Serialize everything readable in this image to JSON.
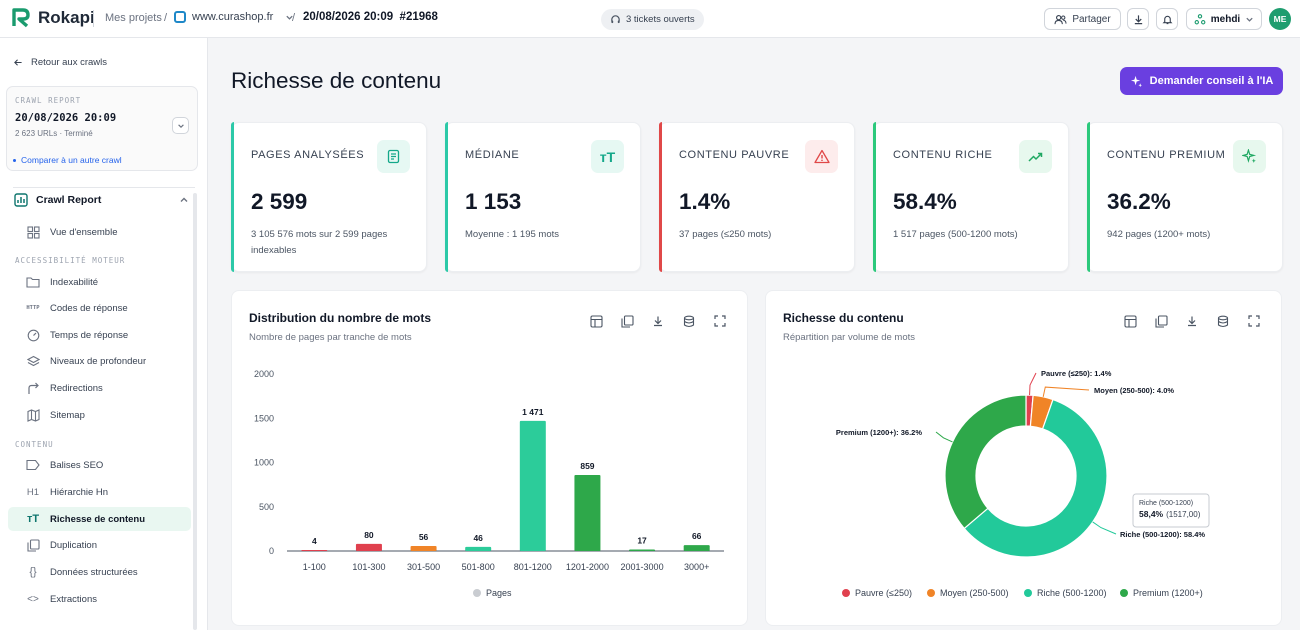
{
  "topbar": {
    "logo": "Rokapi",
    "breadcrumb_projects": "Mes projets",
    "site": "www.curashop.fr",
    "crawl_id": "20/08/2026 20:09  #21968",
    "tickets": "3 tickets ouverts",
    "share_label": "Partager",
    "user": "mehdi",
    "avatar_initials": "ME"
  },
  "sidebar": {
    "back": "Retour aux crawls",
    "crawl_box": {
      "label": "CRAWL REPORT",
      "date": "20/08/2026 20:09",
      "sub": "2 623 URLs · Terminé",
      "compare": "Comparer à un autre crawl"
    },
    "section": "Crawl Report",
    "items": [
      {
        "label": "Vue d'ensemble",
        "icon": "grid-icon"
      },
      {
        "label": "Indexabilité",
        "icon": "folder-icon"
      },
      {
        "label": "Codes de réponse",
        "icon": "http-icon"
      },
      {
        "label": "Temps de réponse",
        "icon": "gauge-icon"
      },
      {
        "label": "Niveaux de profondeur",
        "icon": "layers-icon"
      },
      {
        "label": "Redirections",
        "icon": "redirect-icon"
      },
      {
        "label": "Sitemap",
        "icon": "map-icon"
      },
      {
        "label": "Balises SEO",
        "icon": "tag-icon"
      },
      {
        "label": "Hiérarchie Hn",
        "icon": "heading-icon"
      },
      {
        "label": "Richesse de contenu",
        "icon": "text-size-icon"
      },
      {
        "label": "Duplication",
        "icon": "copy-icon"
      },
      {
        "label": "Données structurées",
        "icon": "braces-icon"
      },
      {
        "label": "Extractions",
        "icon": "code-icon"
      }
    ],
    "groups": {
      "accessibility": "ACCESSIBILITÉ MOTEUR",
      "content": "CONTENU"
    }
  },
  "main": {
    "title": "Richesse de contenu",
    "ai_button": "Demander conseil à l'IA",
    "cards": [
      {
        "label": "PAGES ANALYSÉES",
        "value": "2 599",
        "sub": "3 105 576 mots sur 2 599 pages indexables",
        "color": "#2cc9a8"
      },
      {
        "label": "MÉDIANE",
        "value": "1 153",
        "sub": "Moyenne : 1 195 mots",
        "color": "#2cc9a8"
      },
      {
        "label": "CONTENU PAUVRE",
        "value": "1.4%",
        "sub": "37 pages (≤250 mots)",
        "color": "#e04848"
      },
      {
        "label": "CONTENU RICHE",
        "value": "58.4%",
        "sub": "1 517 pages (500-1200 mots)",
        "color": "#2cc97c"
      },
      {
        "label": "CONTENU PREMIUM",
        "value": "36.2%",
        "sub": "942 pages (1200+ mots)",
        "color": "#2cc97c"
      }
    ]
  },
  "chart_data": [
    {
      "type": "bar",
      "title": "Distribution du nombre de mots",
      "subtitle": "Nombre de pages par tranche de mots",
      "categories": [
        "1-100",
        "101-300",
        "301-500",
        "501-800",
        "801-1200",
        "1201-2000",
        "2001-3000",
        "3000+"
      ],
      "values": [
        4,
        80,
        56,
        46,
        1471,
        859,
        17,
        66
      ],
      "value_labels": [
        "4",
        "80",
        "56",
        "46",
        "1 471",
        "859",
        "17",
        "66"
      ],
      "colors": [
        "#e0404e",
        "#e0404e",
        "#f08427",
        "#2ccc9a",
        "#2ccc9a",
        "#2ea84a",
        "#2ea84a",
        "#2ea84a"
      ],
      "yticks": [
        0,
        500,
        1000,
        1500,
        2000
      ],
      "ylim": [
        0,
        2000
      ],
      "legend": "Pages",
      "legend_position": "bottom"
    },
    {
      "type": "pie",
      "title": "Richesse du contenu",
      "subtitle": "Répartition par volume de mots",
      "slices": [
        {
          "name": "Pauvre (≤250)",
          "value": 1.4,
          "color": "#e0404e",
          "label": "Pauvre (≤250): 1.4%"
        },
        {
          "name": "Moyen (250-500)",
          "value": 4.0,
          "color": "#f08427",
          "label": "Moyen (250-500): 4.0%"
        },
        {
          "name": "Riche (500-1200)",
          "value": 58.4,
          "color": "#22c99a",
          "label": "Riche (500-1200): 58.4%"
        },
        {
          "name": "Premium (1200+)",
          "value": 36.2,
          "color": "#2ea84a",
          "label": "Premium (1200+): 36.2%"
        }
      ],
      "tooltip": {
        "title": "Riche (500-1200)",
        "value": "58,4%",
        "detail": "(1517,00)"
      },
      "legend_position": "bottom"
    }
  ]
}
